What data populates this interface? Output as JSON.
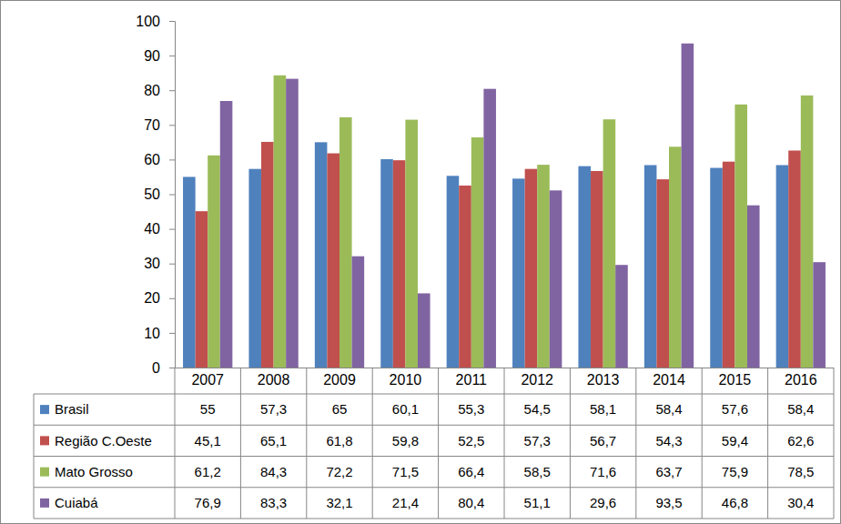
{
  "chart_data": {
    "type": "bar",
    "categories": [
      "2007",
      "2008",
      "2009",
      "2010",
      "2011",
      "2012",
      "2013",
      "2014",
      "2015",
      "2016"
    ],
    "series": [
      {
        "name": "Brasil",
        "color": "#4f81bd",
        "values": [
          55,
          57.3,
          65,
          60.1,
          55.3,
          54.5,
          58.1,
          58.4,
          57.6,
          58.4
        ],
        "value_labels": [
          "55",
          "57,3",
          "65",
          "60,1",
          "55,3",
          "54,5",
          "58,1",
          "58,4",
          "57,6",
          "58,4"
        ]
      },
      {
        "name": "Região C.Oeste",
        "color": "#c0504d",
        "values": [
          45.1,
          65.1,
          61.8,
          59.8,
          52.5,
          57.3,
          56.7,
          54.3,
          59.4,
          62.6
        ],
        "value_labels": [
          "45,1",
          "65,1",
          "61,8",
          "59,8",
          "52,5",
          "57,3",
          "56,7",
          "54,3",
          "59,4",
          "62,6"
        ]
      },
      {
        "name": "Mato Grosso",
        "color": "#9bbb59",
        "values": [
          61.2,
          84.3,
          72.2,
          71.5,
          66.4,
          58.5,
          71.6,
          63.7,
          75.9,
          78.5
        ],
        "value_labels": [
          "61,2",
          "84,3",
          "72,2",
          "71,5",
          "66,4",
          "58,5",
          "71,6",
          "63,7",
          "75,9",
          "78,5"
        ]
      },
      {
        "name": "Cuiabá",
        "color": "#8064a2",
        "values": [
          76.9,
          83.3,
          32.1,
          21.4,
          80.4,
          51.1,
          29.6,
          93.5,
          46.8,
          30.4
        ],
        "value_labels": [
          "76,9",
          "83,3",
          "32,1",
          "21,4",
          "80,4",
          "51,1",
          "29,6",
          "93,5",
          "46,8",
          "30,4"
        ]
      }
    ],
    "ylim": [
      0,
      100
    ],
    "yticks": [
      0,
      10,
      20,
      30,
      40,
      50,
      60,
      70,
      80,
      90,
      100
    ],
    "grid": false
  }
}
